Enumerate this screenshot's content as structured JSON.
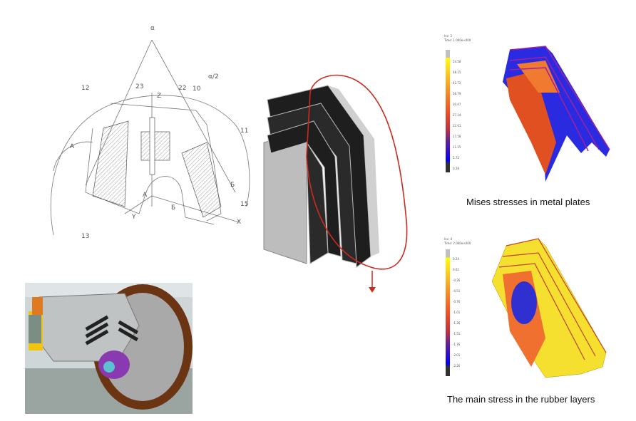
{
  "drawing": {
    "labels": {
      "alpha": "α",
      "alpha_half": "α/2",
      "n12": "12",
      "n23": "23",
      "z": "Z",
      "n22": "22",
      "n10": "10",
      "n11": "11",
      "a1": "A",
      "a2": "A",
      "b1": "Б",
      "b2": "Б",
      "n15": "15",
      "n13": "13",
      "y": "Y",
      "x": "X"
    }
  },
  "fem_top": {
    "header": [
      "Inc: 2",
      "Time: 1.000e+000"
    ],
    "legend_ticks": [
      "54.58",
      "48.15",
      "42.72",
      "36.79",
      "30.47",
      "27.14",
      "22.01",
      "17.58",
      "11.15",
      "5.72",
      "0.28"
    ],
    "caption": "Mises stresses in metal plates"
  },
  "fem_bottom": {
    "header": [
      "Inc: 4",
      "Time: 2.000e+000"
    ],
    "legend_ticks": [
      "0.24",
      "0.01",
      "-0.26",
      "-0.51",
      "-0.76",
      "-1.01",
      "-1.26",
      "-1.51",
      "-1.76",
      "-2.01",
      "-2.26"
    ],
    "caption": "The main stress in the rubber layers"
  },
  "colors": {
    "highlight": "#cc2a1e",
    "scale": [
      "#c0c0c0",
      "#ffff00",
      "#ffd000",
      "#ffa020",
      "#ff7a20",
      "#ff5a20",
      "#f04020",
      "#c03040",
      "#6020a0",
      "#2020e0",
      "#0000ff",
      "#303030"
    ]
  }
}
